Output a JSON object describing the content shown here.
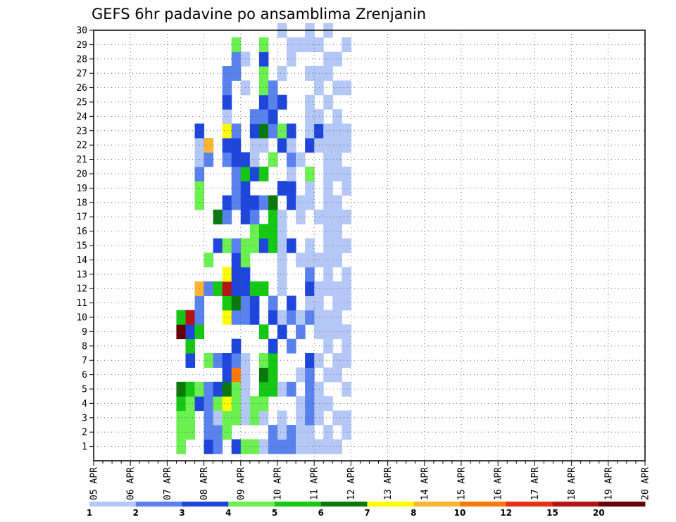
{
  "chart_data": {
    "type": "heatmap",
    "title": "GEFS 6hr padavine po ansamblima Zrenjanin",
    "x_labels": [
      "05 APR",
      "06 APR",
      "07 APR",
      "08 APR",
      "09 APR",
      "10 APR",
      "11 APR",
      "12 APR",
      "13 APR",
      "14 APR",
      "15 APR",
      "16 APR",
      "17 APR",
      "18 APR",
      "19 APR",
      "20 APR"
    ],
    "x_range": [
      "05 APR 00Z",
      "20 APR 00Z"
    ],
    "time_step_hours": 6,
    "y_labels": [
      "1",
      "2",
      "3",
      "4",
      "5",
      "6",
      "7",
      "8",
      "9",
      "10",
      "11",
      "12",
      "13",
      "14",
      "15",
      "16",
      "17",
      "18",
      "19",
      "20",
      "21",
      "22",
      "23",
      "24",
      "25",
      "26",
      "27",
      "28",
      "29",
      "30"
    ],
    "y_range": [
      0,
      30
    ],
    "grid": "dotted",
    "colorbar": {
      "labels": [
        "1",
        "2",
        "3",
        "4",
        "5",
        "6",
        "7",
        "8",
        "10",
        "12",
        "15",
        "20"
      ],
      "colors": [
        "#b4c8f8",
        "#5a82ee",
        "#1e46dc",
        "#6af050",
        "#14c814",
        "#0a780a",
        "#ffff00",
        "#ffb432",
        "#ff780a",
        "#e63214",
        "#b41414",
        "#640000"
      ],
      "placement": "bottom"
    },
    "cells": [
      [
        9,
        1,
        4
      ],
      [
        9,
        2,
        4
      ],
      [
        9,
        3,
        4
      ],
      [
        9,
        4,
        5
      ],
      [
        9,
        5,
        6
      ],
      [
        9,
        9,
        12
      ],
      [
        9,
        10,
        5
      ],
      [
        10,
        2,
        4
      ],
      [
        10,
        3,
        4
      ],
      [
        10,
        4,
        4
      ],
      [
        10,
        5,
        5
      ],
      [
        10,
        7,
        3
      ],
      [
        10,
        8,
        5
      ],
      [
        10,
        9,
        3
      ],
      [
        10,
        10,
        11
      ],
      [
        11,
        4,
        3
      ],
      [
        11,
        5,
        4
      ],
      [
        11,
        9,
        5
      ],
      [
        11,
        10,
        2
      ],
      [
        11,
        11,
        2
      ],
      [
        11,
        12,
        8
      ],
      [
        11,
        18,
        4
      ],
      [
        11,
        19,
        4
      ],
      [
        11,
        20,
        2
      ],
      [
        11,
        21,
        1
      ],
      [
        11,
        22,
        1
      ],
      [
        11,
        23,
        3
      ],
      [
        12,
        1,
        3
      ],
      [
        12,
        2,
        2
      ],
      [
        12,
        3,
        2
      ],
      [
        12,
        4,
        2
      ],
      [
        12,
        5,
        2
      ],
      [
        12,
        7,
        4
      ],
      [
        12,
        12,
        2
      ],
      [
        12,
        14,
        4
      ],
      [
        12,
        21,
        2
      ],
      [
        12,
        22,
        8
      ],
      [
        13,
        1,
        2
      ],
      [
        13,
        2,
        2
      ],
      [
        13,
        3,
        1
      ],
      [
        13,
        4,
        4
      ],
      [
        13,
        5,
        3
      ],
      [
        13,
        7,
        2
      ],
      [
        13,
        12,
        5
      ],
      [
        13,
        15,
        3
      ],
      [
        13,
        17,
        6
      ],
      [
        14,
        2,
        4
      ],
      [
        14,
        3,
        4
      ],
      [
        14,
        4,
        7
      ],
      [
        14,
        5,
        6
      ],
      [
        14,
        6,
        3
      ],
      [
        14,
        7,
        3
      ],
      [
        14,
        10,
        7
      ],
      [
        14,
        11,
        5
      ],
      [
        14,
        12,
        11
      ],
      [
        14,
        13,
        7
      ],
      [
        14,
        15,
        4
      ],
      [
        14,
        17,
        2
      ],
      [
        14,
        18,
        3
      ],
      [
        14,
        21,
        2
      ],
      [
        14,
        22,
        3
      ],
      [
        14,
        23,
        7
      ],
      [
        14,
        24,
        1
      ],
      [
        14,
        25,
        3
      ],
      [
        14,
        26,
        2
      ],
      [
        14,
        27,
        2
      ],
      [
        15,
        1,
        3
      ],
      [
        15,
        3,
        4
      ],
      [
        15,
        4,
        4
      ],
      [
        15,
        5,
        4
      ],
      [
        15,
        6,
        9
      ],
      [
        15,
        7,
        2
      ],
      [
        15,
        8,
        3
      ],
      [
        15,
        10,
        2
      ],
      [
        15,
        11,
        6
      ],
      [
        15,
        12,
        3
      ],
      [
        15,
        13,
        3
      ],
      [
        15,
        14,
        3
      ],
      [
        15,
        15,
        2
      ],
      [
        15,
        18,
        2
      ],
      [
        15,
        19,
        2
      ],
      [
        15,
        20,
        2
      ],
      [
        15,
        21,
        3
      ],
      [
        15,
        22,
        3
      ],
      [
        15,
        23,
        2
      ],
      [
        15,
        27,
        2
      ],
      [
        15,
        28,
        2
      ],
      [
        15,
        29,
        4
      ],
      [
        16,
        1,
        4
      ],
      [
        16,
        3,
        1
      ],
      [
        16,
        4,
        1
      ],
      [
        16,
        5,
        1
      ],
      [
        16,
        6,
        1
      ],
      [
        16,
        7,
        1
      ],
      [
        16,
        10,
        2
      ],
      [
        16,
        11,
        2
      ],
      [
        16,
        12,
        3
      ],
      [
        16,
        13,
        3
      ],
      [
        16,
        14,
        4
      ],
      [
        16,
        15,
        4
      ],
      [
        16,
        17,
        3
      ],
      [
        16,
        18,
        3
      ],
      [
        16,
        19,
        3
      ],
      [
        16,
        20,
        5
      ],
      [
        16,
        21,
        3
      ],
      [
        16,
        26,
        1
      ],
      [
        16,
        28,
        1
      ],
      [
        17,
        1,
        4
      ],
      [
        17,
        3,
        4
      ],
      [
        17,
        4,
        4
      ],
      [
        17,
        10,
        3
      ],
      [
        17,
        11,
        3
      ],
      [
        17,
        12,
        5
      ],
      [
        17,
        15,
        4
      ],
      [
        17,
        16,
        4
      ],
      [
        17,
        17,
        2
      ],
      [
        17,
        18,
        3
      ],
      [
        17,
        20,
        3
      ],
      [
        17,
        21,
        1
      ],
      [
        17,
        22,
        1
      ],
      [
        17,
        23,
        3
      ],
      [
        17,
        24,
        2
      ],
      [
        18,
        1,
        1
      ],
      [
        18,
        3,
        1
      ],
      [
        18,
        4,
        4
      ],
      [
        18,
        5,
        5
      ],
      [
        18,
        6,
        6
      ],
      [
        18,
        7,
        4
      ],
      [
        18,
        9,
        5
      ],
      [
        18,
        12,
        5
      ],
      [
        18,
        15,
        3
      ],
      [
        18,
        16,
        5
      ],
      [
        18,
        18,
        2
      ],
      [
        18,
        20,
        5
      ],
      [
        18,
        22,
        1
      ],
      [
        18,
        23,
        6
      ],
      [
        18,
        24,
        2
      ],
      [
        18,
        25,
        3
      ],
      [
        18,
        26,
        4
      ],
      [
        18,
        27,
        4
      ],
      [
        18,
        28,
        3
      ],
      [
        18,
        29,
        4
      ],
      [
        19,
        1,
        2
      ],
      [
        19,
        2,
        2
      ],
      [
        19,
        5,
        5
      ],
      [
        19,
        6,
        5
      ],
      [
        19,
        7,
        5
      ],
      [
        19,
        8,
        3
      ],
      [
        19,
        10,
        3
      ],
      [
        19,
        11,
        2
      ],
      [
        19,
        15,
        5
      ],
      [
        19,
        16,
        5
      ],
      [
        19,
        17,
        5
      ],
      [
        19,
        18,
        6
      ],
      [
        19,
        21,
        4
      ],
      [
        19,
        23,
        2
      ],
      [
        19,
        24,
        3
      ],
      [
        19,
        25,
        2
      ],
      [
        19,
        26,
        2
      ],
      [
        20,
        1,
        2
      ],
      [
        20,
        2,
        1
      ],
      [
        20,
        3,
        1
      ],
      [
        20,
        5,
        1
      ],
      [
        20,
        9,
        3
      ],
      [
        20,
        10,
        1
      ],
      [
        20,
        12,
        1
      ],
      [
        20,
        13,
        1
      ],
      [
        20,
        14,
        1
      ],
      [
        20,
        15,
        1
      ],
      [
        20,
        16,
        1
      ],
      [
        20,
        17,
        1
      ],
      [
        20,
        19,
        3
      ],
      [
        20,
        22,
        3
      ],
      [
        20,
        23,
        4
      ],
      [
        20,
        25,
        3
      ],
      [
        20,
        27,
        1
      ],
      [
        20,
        30,
        1
      ],
      [
        21,
        1,
        2
      ],
      [
        21,
        2,
        2
      ],
      [
        21,
        5,
        2
      ],
      [
        21,
        8,
        2
      ],
      [
        21,
        10,
        2
      ],
      [
        21,
        11,
        3
      ],
      [
        21,
        15,
        3
      ],
      [
        21,
        18,
        3
      ],
      [
        21,
        19,
        3
      ],
      [
        21,
        20,
        1
      ],
      [
        21,
        21,
        2
      ],
      [
        21,
        22,
        1
      ],
      [
        21,
        23,
        3
      ],
      [
        21,
        28,
        1
      ],
      [
        21,
        29,
        1
      ],
      [
        22,
        1,
        1
      ],
      [
        22,
        2,
        1
      ],
      [
        22,
        3,
        1
      ],
      [
        22,
        4,
        1
      ],
      [
        22,
        6,
        1
      ],
      [
        22,
        9,
        2
      ],
      [
        22,
        10,
        1
      ],
      [
        22,
        14,
        1
      ],
      [
        22,
        17,
        1
      ],
      [
        22,
        18,
        1
      ],
      [
        22,
        21,
        1
      ],
      [
        22,
        29,
        1
      ],
      [
        23,
        1,
        1
      ],
      [
        23,
        2,
        1
      ],
      [
        23,
        3,
        2
      ],
      [
        23,
        4,
        2
      ],
      [
        23,
        5,
        2
      ],
      [
        23,
        6,
        2
      ],
      [
        23,
        7,
        3
      ],
      [
        23,
        10,
        2
      ],
      [
        23,
        11,
        1
      ],
      [
        23,
        12,
        3
      ],
      [
        23,
        13,
        2
      ],
      [
        23,
        14,
        1
      ],
      [
        23,
        15,
        1
      ],
      [
        23,
        18,
        1
      ],
      [
        23,
        19,
        1
      ],
      [
        23,
        20,
        4
      ],
      [
        23,
        22,
        3
      ],
      [
        23,
        23,
        1
      ],
      [
        23,
        24,
        1
      ],
      [
        23,
        25,
        1
      ],
      [
        23,
        27,
        1
      ],
      [
        23,
        29,
        1
      ],
      [
        23,
        30,
        1
      ],
      [
        24,
        1,
        1
      ],
      [
        24,
        3,
        1
      ],
      [
        24,
        4,
        1
      ],
      [
        24,
        5,
        1
      ],
      [
        24,
        7,
        1
      ],
      [
        24,
        9,
        1
      ],
      [
        24,
        10,
        1
      ],
      [
        24,
        11,
        1
      ],
      [
        24,
        12,
        1
      ],
      [
        24,
        14,
        1
      ],
      [
        24,
        17,
        1
      ],
      [
        24,
        22,
        1
      ],
      [
        24,
        23,
        3
      ],
      [
        24,
        24,
        1
      ],
      [
        24,
        26,
        1
      ],
      [
        24,
        27,
        1
      ],
      [
        24,
        29,
        1
      ],
      [
        25,
        1,
        1
      ],
      [
        25,
        2,
        1
      ],
      [
        25,
        4,
        1
      ],
      [
        25,
        6,
        1
      ],
      [
        25,
        8,
        1
      ],
      [
        25,
        9,
        1
      ],
      [
        25,
        10,
        1
      ],
      [
        25,
        12,
        1
      ],
      [
        25,
        13,
        1
      ],
      [
        25,
        14,
        1
      ],
      [
        25,
        15,
        1
      ],
      [
        25,
        16,
        1
      ],
      [
        25,
        17,
        1
      ],
      [
        25,
        18,
        1
      ],
      [
        25,
        19,
        1
      ],
      [
        25,
        20,
        1
      ],
      [
        25,
        21,
        1
      ],
      [
        25,
        22,
        1
      ],
      [
        25,
        23,
        1
      ],
      [
        25,
        25,
        1
      ],
      [
        25,
        27,
        1
      ],
      [
        25,
        28,
        1
      ],
      [
        25,
        30,
        1
      ],
      [
        26,
        1,
        1
      ],
      [
        26,
        3,
        1
      ],
      [
        26,
        6,
        1
      ],
      [
        26,
        7,
        1
      ],
      [
        26,
        9,
        1
      ],
      [
        26,
        10,
        1
      ],
      [
        26,
        11,
        1
      ],
      [
        26,
        12,
        1
      ],
      [
        26,
        14,
        1
      ],
      [
        26,
        15,
        1
      ],
      [
        26,
        16,
        1
      ],
      [
        26,
        17,
        1
      ],
      [
        26,
        18,
        1
      ],
      [
        26,
        20,
        1
      ],
      [
        26,
        21,
        1
      ],
      [
        26,
        22,
        1
      ],
      [
        26,
        23,
        1
      ],
      [
        26,
        24,
        1
      ],
      [
        26,
        26,
        1
      ],
      [
        26,
        28,
        1
      ],
      [
        27,
        2,
        1
      ],
      [
        27,
        3,
        1
      ],
      [
        27,
        5,
        1
      ],
      [
        27,
        7,
        1
      ],
      [
        27,
        8,
        1
      ],
      [
        27,
        9,
        1
      ],
      [
        27,
        11,
        1
      ],
      [
        27,
        12,
        1
      ],
      [
        27,
        13,
        1
      ],
      [
        27,
        15,
        1
      ],
      [
        27,
        17,
        1
      ],
      [
        27,
        19,
        1
      ],
      [
        27,
        20,
        1
      ],
      [
        27,
        22,
        1
      ],
      [
        27,
        23,
        1
      ],
      [
        27,
        26,
        1
      ],
      [
        27,
        29,
        1
      ]
    ]
  }
}
